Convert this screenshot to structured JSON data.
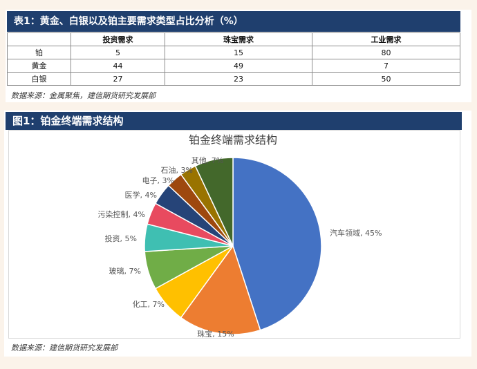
{
  "table_section": {
    "title": "表1：黄金、白银以及铂主要需求类型占比分析（%）",
    "headers": [
      "",
      "投资需求",
      "珠宝需求",
      "工业需求"
    ],
    "rows": [
      {
        "name": "铂",
        "values": [
          "5",
          "15",
          "80"
        ]
      },
      {
        "name": "黄金",
        "values": [
          "44",
          "49",
          "7"
        ]
      },
      {
        "name": "白银",
        "values": [
          "27",
          "23",
          "50"
        ]
      }
    ],
    "source": "数据来源：金属聚焦，建信期货研究发展部"
  },
  "figure_section": {
    "title": "图1：铂金终端需求结构",
    "source": "数据来源：建信期货研究发展部"
  },
  "chart_data": {
    "type": "pie",
    "title": "铂金终端需求结构",
    "slices": [
      {
        "label": "汽车领域",
        "value": 45,
        "text": "汽车领域, 45%",
        "color": "#4472c4"
      },
      {
        "label": "珠宝",
        "value": 15,
        "text": "珠宝, 15%",
        "color": "#ed7d31"
      },
      {
        "label": "化工",
        "value": 7,
        "text": "化工, 7%",
        "color": "#ffc000"
      },
      {
        "label": "玻璃",
        "value": 7,
        "text": "玻璃, 7%",
        "color": "#70ad47"
      },
      {
        "label": "投资",
        "value": 5,
        "text": "投资, 5%",
        "color": "#3fbfb2"
      },
      {
        "label": "污染控制",
        "value": 4,
        "text": "污染控制, 4%",
        "color": "#e84a5f"
      },
      {
        "label": "医学",
        "value": 4,
        "text": "医学, 4%",
        "color": "#264478"
      },
      {
        "label": "电子",
        "value": 3,
        "text": "电子, 3%",
        "color": "#9e480e"
      },
      {
        "label": "石油",
        "value": 3,
        "text": "石油, 3%",
        "color": "#997300"
      },
      {
        "label": "其他",
        "value": 7,
        "text": "其他, 7%",
        "color": "#43682b"
      }
    ]
  }
}
